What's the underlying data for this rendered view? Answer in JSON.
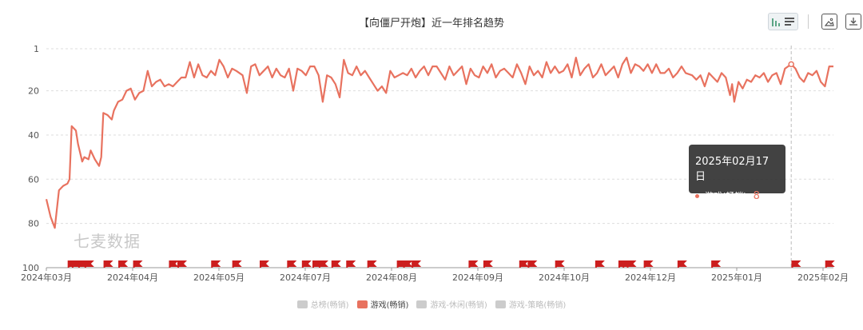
{
  "title": "【向僵尸开炮】近一年排名趋势",
  "watermark": "七麦数据",
  "toolbar": {
    "icons": [
      "bar-chart-icon",
      "list-icon",
      "image-icon",
      "download-icon"
    ]
  },
  "tooltip": {
    "date": "2025年02月17日",
    "series": "游戏(畅销)",
    "value": "8"
  },
  "colors": {
    "line": "#e8725f",
    "flag": "#cc1e1e",
    "grid": "#dddddd"
  },
  "legend": [
    {
      "label": "总榜(畅销)",
      "active": false
    },
    {
      "label": "游戏(畅销)",
      "active": true
    },
    {
      "label": "游戏-休闲(畅销)",
      "active": false
    },
    {
      "label": "游戏-策略(畅销)",
      "active": false
    }
  ],
  "chart_data": {
    "type": "line",
    "title": "【向僵尸开炮】近一年排名趋势",
    "y_inverted": true,
    "ylim": [
      1,
      100
    ],
    "y_ticks": [
      "1",
      "20",
      "40",
      "60",
      "80",
      "100"
    ],
    "x_ticks": [
      "2024年03月",
      "2024年04月",
      "2024年05月",
      "2024年07月",
      "2024年08月",
      "2024年09月",
      "2024年10月",
      "2024年12月",
      "2025年01月",
      "2025年02月"
    ],
    "series": [
      {
        "name": "游戏(畅销)",
        "points": [
          [
            "2024-03-01",
            69
          ],
          [
            "2024-03-03",
            77
          ],
          [
            "2024-03-05",
            82
          ],
          [
            "2024-03-07",
            65
          ],
          [
            "2024-03-09",
            63
          ],
          [
            "2024-03-11",
            62
          ],
          [
            "2024-03-12",
            60
          ],
          [
            "2024-03-13",
            36
          ],
          [
            "2024-03-15",
            38
          ],
          [
            "2024-03-16",
            44
          ],
          [
            "2024-03-18",
            52
          ],
          [
            "2024-03-19",
            50
          ],
          [
            "2024-03-21",
            51
          ],
          [
            "2024-03-22",
            47
          ],
          [
            "2024-03-24",
            51
          ],
          [
            "2024-03-26",
            54
          ],
          [
            "2024-03-27",
            50
          ],
          [
            "2024-03-28",
            30
          ],
          [
            "2024-03-30",
            31
          ],
          [
            "2024-04-01",
            33
          ],
          [
            "2024-04-02",
            29
          ],
          [
            "2024-04-04",
            25
          ],
          [
            "2024-04-06",
            24
          ],
          [
            "2024-04-08",
            20
          ],
          [
            "2024-04-10",
            19
          ],
          [
            "2024-04-12",
            24
          ],
          [
            "2024-04-14",
            21
          ],
          [
            "2024-04-16",
            20
          ],
          [
            "2024-04-18",
            11
          ],
          [
            "2024-04-20",
            18
          ],
          [
            "2024-04-22",
            16
          ],
          [
            "2024-04-24",
            15
          ],
          [
            "2024-04-26",
            18
          ],
          [
            "2024-04-28",
            17
          ],
          [
            "2024-04-30",
            18
          ],
          [
            "2024-05-02",
            16
          ],
          [
            "2024-05-04",
            14
          ],
          [
            "2024-05-06",
            14
          ],
          [
            "2024-05-08",
            7
          ],
          [
            "2024-05-10",
            14
          ],
          [
            "2024-05-12",
            8
          ],
          [
            "2024-05-14",
            13
          ],
          [
            "2024-05-16",
            14
          ],
          [
            "2024-05-18",
            11
          ],
          [
            "2024-05-20",
            13
          ],
          [
            "2024-05-22",
            6
          ],
          [
            "2024-05-24",
            9
          ],
          [
            "2024-05-26",
            14
          ],
          [
            "2024-05-28",
            10
          ],
          [
            "2024-05-30",
            11
          ],
          [
            "2024-06-02",
            13
          ],
          [
            "2024-06-04",
            21
          ],
          [
            "2024-06-06",
            9
          ],
          [
            "2024-06-08",
            8
          ],
          [
            "2024-06-10",
            13
          ],
          [
            "2024-06-12",
            11
          ],
          [
            "2024-06-14",
            9
          ],
          [
            "2024-06-16",
            14
          ],
          [
            "2024-06-18",
            10
          ],
          [
            "2024-06-20",
            13
          ],
          [
            "2024-06-22",
            14
          ],
          [
            "2024-06-24",
            10
          ],
          [
            "2024-06-26",
            20
          ],
          [
            "2024-06-28",
            10
          ],
          [
            "2024-06-30",
            11
          ],
          [
            "2024-07-02",
            13
          ],
          [
            "2024-07-04",
            9
          ],
          [
            "2024-07-06",
            9
          ],
          [
            "2024-07-08",
            13
          ],
          [
            "2024-07-10",
            25
          ],
          [
            "2024-07-12",
            13
          ],
          [
            "2024-07-14",
            14
          ],
          [
            "2024-07-16",
            17
          ],
          [
            "2024-07-18",
            23
          ],
          [
            "2024-07-20",
            6
          ],
          [
            "2024-07-22",
            12
          ],
          [
            "2024-07-24",
            13
          ],
          [
            "2024-07-26",
            9
          ],
          [
            "2024-07-28",
            13
          ],
          [
            "2024-07-30",
            11
          ],
          [
            "2024-08-01",
            14
          ],
          [
            "2024-08-03",
            17
          ],
          [
            "2024-08-05",
            20
          ],
          [
            "2024-08-07",
            18
          ],
          [
            "2024-08-09",
            21
          ],
          [
            "2024-08-11",
            11
          ],
          [
            "2024-08-13",
            14
          ],
          [
            "2024-08-15",
            13
          ],
          [
            "2024-08-17",
            12
          ],
          [
            "2024-08-19",
            13
          ],
          [
            "2024-08-21",
            10
          ],
          [
            "2024-08-23",
            14
          ],
          [
            "2024-08-25",
            11
          ],
          [
            "2024-08-27",
            9
          ],
          [
            "2024-08-29",
            13
          ],
          [
            "2024-08-31",
            9
          ],
          [
            "2024-09-02",
            9
          ],
          [
            "2024-09-04",
            12
          ],
          [
            "2024-09-06",
            15
          ],
          [
            "2024-09-08",
            9
          ],
          [
            "2024-09-10",
            13
          ],
          [
            "2024-09-12",
            11
          ],
          [
            "2024-09-14",
            9
          ],
          [
            "2024-09-16",
            17
          ],
          [
            "2024-09-18",
            10
          ],
          [
            "2024-09-20",
            13
          ],
          [
            "2024-09-22",
            14
          ],
          [
            "2024-09-24",
            9
          ],
          [
            "2024-09-26",
            12
          ],
          [
            "2024-09-28",
            8
          ],
          [
            "2024-09-30",
            14
          ],
          [
            "2024-10-02",
            11
          ],
          [
            "2024-10-04",
            10
          ],
          [
            "2024-10-06",
            12
          ],
          [
            "2024-10-08",
            14
          ],
          [
            "2024-10-10",
            8
          ],
          [
            "2024-10-12",
            12
          ],
          [
            "2024-10-14",
            17
          ],
          [
            "2024-10-16",
            9
          ],
          [
            "2024-10-18",
            13
          ],
          [
            "2024-10-20",
            11
          ],
          [
            "2024-10-22",
            14
          ],
          [
            "2024-10-24",
            7
          ],
          [
            "2024-10-26",
            12
          ],
          [
            "2024-10-28",
            9
          ],
          [
            "2024-10-30",
            12
          ],
          [
            "2024-11-01",
            11
          ],
          [
            "2024-11-03",
            8
          ],
          [
            "2024-11-05",
            14
          ],
          [
            "2024-11-07",
            5
          ],
          [
            "2024-11-09",
            13
          ],
          [
            "2024-11-11",
            10
          ],
          [
            "2024-11-13",
            8
          ],
          [
            "2024-11-15",
            14
          ],
          [
            "2024-11-17",
            12
          ],
          [
            "2024-11-19",
            8
          ],
          [
            "2024-11-21",
            13
          ],
          [
            "2024-11-23",
            11
          ],
          [
            "2024-11-25",
            9
          ],
          [
            "2024-11-27",
            14
          ],
          [
            "2024-11-29",
            8
          ],
          [
            "2024-12-01",
            5
          ],
          [
            "2024-12-03",
            12
          ],
          [
            "2024-12-05",
            8
          ],
          [
            "2024-12-07",
            9
          ],
          [
            "2024-12-09",
            11
          ],
          [
            "2024-12-11",
            8
          ],
          [
            "2024-12-13",
            12
          ],
          [
            "2024-12-15",
            8
          ],
          [
            "2024-12-17",
            12
          ],
          [
            "2024-12-19",
            12
          ],
          [
            "2024-12-21",
            10
          ],
          [
            "2024-12-23",
            14
          ],
          [
            "2024-12-25",
            12
          ],
          [
            "2024-12-27",
            9
          ],
          [
            "2024-12-29",
            12
          ],
          [
            "2025-01-01",
            13
          ],
          [
            "2025-01-03",
            15
          ],
          [
            "2025-01-05",
            13
          ],
          [
            "2025-01-07",
            18
          ],
          [
            "2025-01-09",
            12
          ],
          [
            "2025-01-11",
            14
          ],
          [
            "2025-01-13",
            16
          ],
          [
            "2025-01-15",
            12
          ],
          [
            "2025-01-17",
            14
          ],
          [
            "2025-01-19",
            22
          ],
          [
            "2025-01-20",
            17
          ],
          [
            "2025-01-21",
            25
          ],
          [
            "2025-01-23",
            16
          ],
          [
            "2025-01-25",
            19
          ],
          [
            "2025-01-27",
            15
          ],
          [
            "2025-01-29",
            16
          ],
          [
            "2025-01-31",
            13
          ],
          [
            "2025-02-02",
            14
          ],
          [
            "2025-02-04",
            12
          ],
          [
            "2025-02-06",
            16
          ],
          [
            "2025-02-08",
            13
          ],
          [
            "2025-02-10",
            12
          ],
          [
            "2025-02-12",
            17
          ],
          [
            "2025-02-14",
            10
          ],
          [
            "2025-02-17",
            8
          ],
          [
            "2025-02-19",
            10
          ],
          [
            "2025-02-21",
            14
          ],
          [
            "2025-02-23",
            16
          ],
          [
            "2025-02-25",
            12
          ],
          [
            "2025-02-27",
            13
          ],
          [
            "2025-03-01",
            11
          ],
          [
            "2025-03-03",
            16
          ],
          [
            "2025-03-05",
            18
          ],
          [
            "2025-03-07",
            9
          ],
          [
            "2025-03-09",
            9
          ]
        ]
      }
    ],
    "event_markers": [
      "2024-03-13",
      "2024-03-15",
      "2024-03-18",
      "2024-03-21",
      "2024-03-30",
      "2024-04-06",
      "2024-04-13",
      "2024-04-30",
      "2024-05-04",
      "2024-05-20",
      "2024-05-30",
      "2024-06-12",
      "2024-06-25",
      "2024-07-02",
      "2024-07-07",
      "2024-07-10",
      "2024-07-16",
      "2024-07-23",
      "2024-08-02",
      "2024-08-16",
      "2024-08-19",
      "2024-08-23",
      "2024-09-19",
      "2024-09-26",
      "2024-10-13",
      "2024-10-17",
      "2024-10-30",
      "2024-11-18",
      "2024-11-29",
      "2024-12-01",
      "2024-12-03",
      "2024-12-11",
      "2024-12-27",
      "2025-01-12",
      "2025-02-19",
      "2025-03-07"
    ],
    "crosshair_date": "2025-02-17",
    "grid": true
  }
}
